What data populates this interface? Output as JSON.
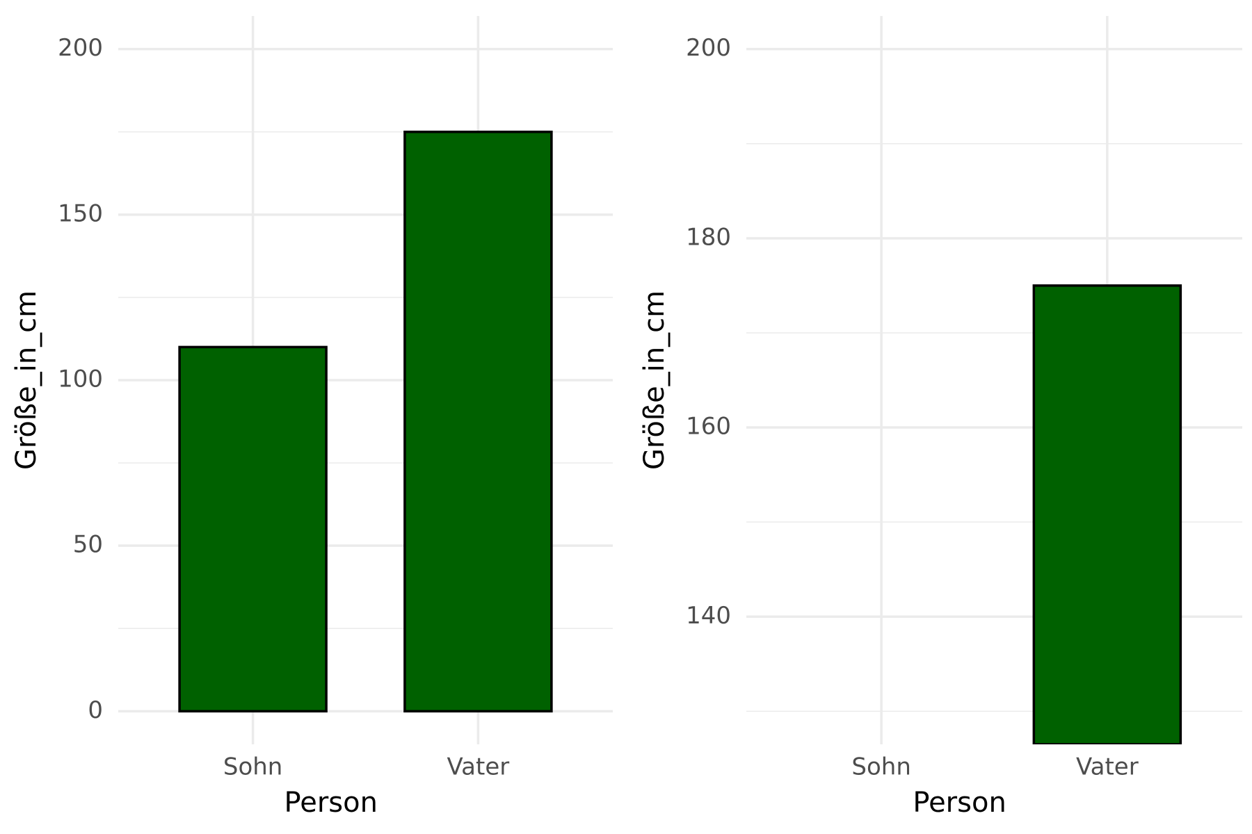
{
  "chart_data": [
    {
      "type": "bar",
      "x_label": "Person",
      "y_label": "Größe_in_cm",
      "categories": [
        "Sohn",
        "Vater"
      ],
      "values": [
        110,
        175
      ],
      "color": "#006100",
      "ylim": [
        -10,
        210
      ],
      "yticks": [
        0,
        50,
        100,
        150,
        200
      ],
      "minor_yticks": [
        25,
        75,
        125,
        175
      ],
      "grid": true
    },
    {
      "type": "bar",
      "x_label": "Person",
      "y_label": "Größe_in_cm",
      "categories": [
        "Sohn",
        "Vater"
      ],
      "values": [
        null,
        175
      ],
      "color": "#006100",
      "ylim": [
        126.5,
        203.5
      ],
      "yticks": [
        140,
        160,
        180,
        200
      ],
      "minor_yticks": [
        130,
        150,
        170,
        190
      ],
      "grid": true
    }
  ]
}
